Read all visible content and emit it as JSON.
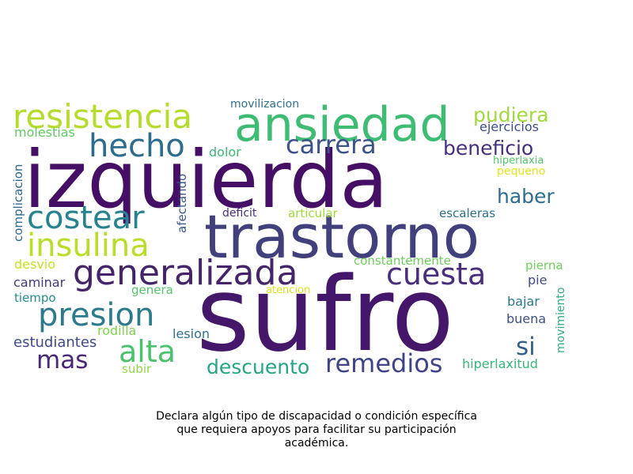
{
  "words": [
    {
      "text": "izquierda",
      "color": "#440f64"
    },
    {
      "text": "sufro",
      "color": "#45176a"
    },
    {
      "text": "trastorno",
      "color": "#413f7c"
    },
    {
      "text": "ansiedad",
      "color": "#3fbc73"
    },
    {
      "text": "resistencia",
      "color": "#b5dc2a"
    },
    {
      "text": "generalizada",
      "color": "#462469"
    },
    {
      "text": "insulina",
      "color": "#b9de28"
    },
    {
      "text": "costear",
      "color": "#26828e"
    },
    {
      "text": "hecho",
      "color": "#2c6c8e"
    },
    {
      "text": "presion",
      "color": "#2b7a8e"
    },
    {
      "text": "cuesta",
      "color": "#472e7c"
    },
    {
      "text": "carrera",
      "color": "#3b528b"
    },
    {
      "text": "alta",
      "color": "#4ac16d"
    },
    {
      "text": "remedios",
      "color": "#404387"
    },
    {
      "text": "beneficio",
      "color": "#462f7c"
    },
    {
      "text": "pudiera",
      "color": "#a2d93f"
    },
    {
      "text": "haber",
      "color": "#2f6e8e"
    },
    {
      "text": "mas",
      "color": "#482876"
    },
    {
      "text": "descuento",
      "color": "#24a685"
    },
    {
      "text": "si",
      "color": "#34608d"
    },
    {
      "text": "estudiantes",
      "color": "#3e4a89"
    },
    {
      "text": "movilizacion",
      "color": "#2f718e"
    },
    {
      "text": "ejercicios",
      "color": "#3b4f8a"
    },
    {
      "text": "molestias",
      "color": "#5ec962"
    },
    {
      "text": "dolor",
      "color": "#38b977"
    },
    {
      "text": "hiperlaxia",
      "color": "#52c569"
    },
    {
      "text": "pequeno",
      "color": "#e2e418"
    },
    {
      "text": "complicacion",
      "color": "#30698e"
    },
    {
      "text": "afectando",
      "color": "#39578c"
    },
    {
      "text": "deficit",
      "color": "#472f7d"
    },
    {
      "text": "articular",
      "color": "#a0da39"
    },
    {
      "text": "escaleras",
      "color": "#2e6f8e"
    },
    {
      "text": "desvio",
      "color": "#cae11f"
    },
    {
      "text": "constantemente",
      "color": "#6ccd5a"
    },
    {
      "text": "pierna",
      "color": "#6ece58"
    },
    {
      "text": "caminar",
      "color": "#453781"
    },
    {
      "text": "pie",
      "color": "#3e4c8a"
    },
    {
      "text": "tiempo",
      "color": "#20908d"
    },
    {
      "text": "genera",
      "color": "#54c568"
    },
    {
      "text": "atencion",
      "color": "#d8e219"
    },
    {
      "text": "movimiento",
      "color": "#29af7f"
    },
    {
      "text": "bajar",
      "color": "#29788e"
    },
    {
      "text": "rodilla",
      "color": "#7fd34e"
    },
    {
      "text": "lesion",
      "color": "#2d718e"
    },
    {
      "text": "buena",
      "color": "#3c508b"
    },
    {
      "text": "subir",
      "color": "#92d742"
    },
    {
      "text": "hiperlaxitud",
      "color": "#35b779"
    }
  ],
  "caption": {
    "line1": "Declara algún tipo de discapacidad o condición específica",
    "line2": "que requiera apoyos para facilitar su participación",
    "line3": "académica."
  }
}
